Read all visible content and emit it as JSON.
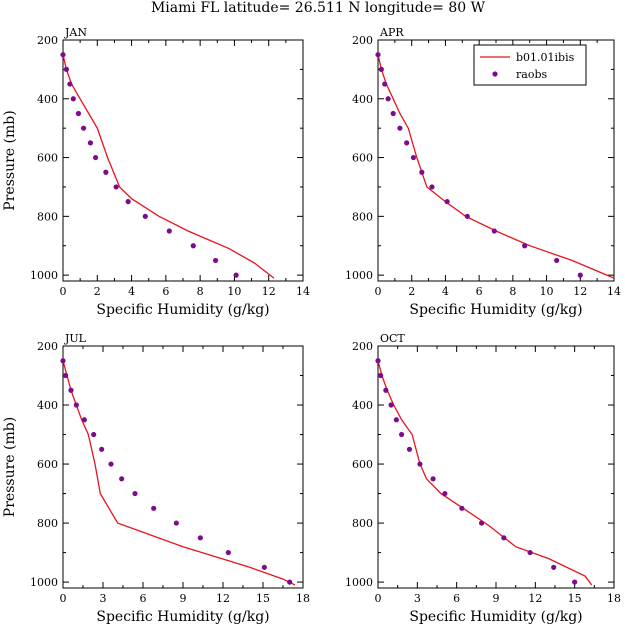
{
  "title": "Miami FL  latitude= 26.511 N longitude= 80 W",
  "colors": {
    "model": "#e8141c",
    "obs": "#7d0c8c",
    "axis": "#000000"
  },
  "legend": {
    "placement": "top-right of APR panel",
    "model_label": "b01.01ibis",
    "obs_label": "raobs"
  },
  "chart_data": [
    {
      "type": "line",
      "panel": "JAN",
      "xlabel": "Specific Humidity (g/kg)",
      "ylabel": "Pressure (mb)",
      "xlim": [
        0,
        14
      ],
      "ylim": [
        1000,
        200
      ],
      "y_inverted": true,
      "xticks": [
        0,
        2,
        4,
        6,
        8,
        10,
        12,
        14
      ],
      "yticks": [
        200,
        400,
        600,
        800,
        1000
      ],
      "grid": false,
      "series": [
        {
          "name": "b01.01ibis",
          "style": "line",
          "x": [
            0.0,
            0.2,
            0.5,
            1.0,
            1.5,
            2.0,
            2.6,
            3.3,
            4.0,
            5.6,
            7.3,
            8.5,
            9.7,
            11.2,
            12.3
          ],
          "y": [
            250,
            300,
            350,
            400,
            450,
            500,
            600,
            700,
            740,
            800,
            850,
            880,
            910,
            960,
            1010
          ]
        },
        {
          "name": "raobs",
          "style": "markers",
          "x": [
            0.0,
            0.2,
            0.4,
            0.6,
            0.9,
            1.2,
            1.6,
            1.9,
            2.5,
            3.1,
            3.8,
            4.8,
            6.2,
            7.6,
            8.9,
            10.1
          ],
          "y": [
            250,
            300,
            350,
            400,
            450,
            500,
            550,
            600,
            650,
            700,
            750,
            800,
            850,
            900,
            950,
            1000
          ]
        }
      ]
    },
    {
      "type": "line",
      "panel": "APR",
      "xlabel": "Specific Humidity (g/kg)",
      "ylabel": "",
      "xlim": [
        0,
        14
      ],
      "ylim": [
        1000,
        200
      ],
      "y_inverted": true,
      "xticks": [
        0,
        2,
        4,
        6,
        8,
        10,
        12,
        14
      ],
      "yticks": [
        200,
        400,
        600,
        800,
        1000
      ],
      "grid": false,
      "series": [
        {
          "name": "b01.01ibis",
          "style": "line",
          "x": [
            0.0,
            0.2,
            0.5,
            0.9,
            1.3,
            1.8,
            2.3,
            2.9,
            4.0,
            5.2,
            7.0,
            9.0,
            11.5,
            14.0
          ],
          "y": [
            250,
            300,
            350,
            400,
            450,
            500,
            600,
            700,
            750,
            800,
            850,
            900,
            950,
            1010
          ]
        },
        {
          "name": "raobs",
          "style": "markers",
          "x": [
            0.0,
            0.2,
            0.4,
            0.6,
            0.9,
            1.3,
            1.7,
            2.1,
            2.6,
            3.2,
            4.1,
            5.3,
            6.9,
            8.7,
            10.6,
            12.0
          ],
          "y": [
            250,
            300,
            350,
            400,
            450,
            500,
            550,
            600,
            650,
            700,
            750,
            800,
            850,
            900,
            950,
            1000
          ]
        }
      ]
    },
    {
      "type": "line",
      "panel": "JUL",
      "xlabel": "Specific Humidity (g/kg)",
      "ylabel": "Pressure (mb)",
      "xlim": [
        0,
        18
      ],
      "ylim": [
        1000,
        200
      ],
      "y_inverted": true,
      "xticks": [
        0,
        3,
        6,
        9,
        12,
        15,
        18
      ],
      "yticks": [
        200,
        400,
        600,
        800,
        1000
      ],
      "grid": false,
      "series": [
        {
          "name": "b01.01ibis",
          "style": "line",
          "x": [
            0.0,
            0.3,
            0.6,
            1.0,
            1.4,
            1.9,
            2.4,
            2.8,
            4.1,
            9.0,
            14.0,
            16.5,
            17.4
          ],
          "y": [
            250,
            300,
            350,
            400,
            450,
            500,
            600,
            700,
            800,
            880,
            950,
            990,
            1010
          ]
        },
        {
          "name": "raobs",
          "style": "markers",
          "x": [
            0.0,
            0.2,
            0.6,
            1.0,
            1.6,
            2.3,
            2.9,
            3.6,
            4.4,
            5.4,
            6.8,
            8.5,
            10.3,
            12.4,
            15.1,
            17.0
          ],
          "y": [
            250,
            300,
            350,
            400,
            450,
            500,
            550,
            600,
            650,
            700,
            750,
            800,
            850,
            900,
            950,
            1000
          ]
        }
      ]
    },
    {
      "type": "line",
      "panel": "OCT",
      "xlabel": "Specific Humidity (g/kg)",
      "ylabel": "",
      "xlim": [
        0,
        18
      ],
      "ylim": [
        1000,
        200
      ],
      "y_inverted": true,
      "xticks": [
        0,
        3,
        6,
        9,
        12,
        15,
        18
      ],
      "yticks": [
        200,
        400,
        600,
        800,
        1000
      ],
      "grid": false,
      "series": [
        {
          "name": "b01.01ibis",
          "style": "line",
          "x": [
            0.0,
            0.3,
            0.7,
            1.2,
            1.8,
            2.6,
            3.2,
            3.7,
            4.8,
            6.5,
            8.5,
            10.5,
            13.0,
            15.8,
            16.3
          ],
          "y": [
            250,
            300,
            350,
            400,
            450,
            500,
            600,
            650,
            700,
            750,
            810,
            880,
            920,
            980,
            1010
          ]
        },
        {
          "name": "raobs",
          "style": "markers",
          "x": [
            0.0,
            0.2,
            0.6,
            1.0,
            1.4,
            1.8,
            2.4,
            3.2,
            4.2,
            5.1,
            6.4,
            7.9,
            9.6,
            11.6,
            13.4,
            15.0
          ],
          "y": [
            250,
            300,
            350,
            400,
            450,
            500,
            550,
            600,
            650,
            700,
            750,
            800,
            850,
            900,
            950,
            1000
          ]
        }
      ]
    }
  ]
}
